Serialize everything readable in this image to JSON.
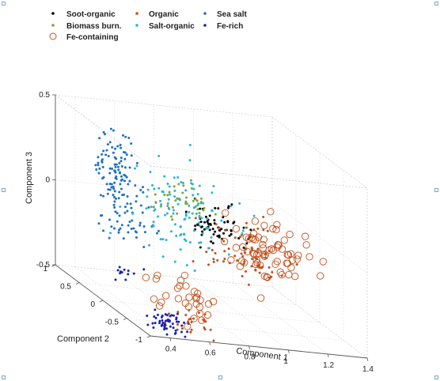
{
  "chart_data": {
    "type": "scatter",
    "title": "",
    "xlabel": "Component 1",
    "ylabel": "Component 2",
    "zlabel": "Component 3",
    "xlim": [
      0.3,
      1.4
    ],
    "ylim": [
      -1,
      1
    ],
    "zlim": [
      -0.5,
      0.5
    ],
    "x_ticks": [
      "0.4",
      "0.6",
      "0.8",
      "1",
      "1.2",
      "1.4"
    ],
    "y_ticks": [
      "-1",
      "-0.5",
      "0",
      "0.5",
      "1"
    ],
    "z_ticks": [
      "-0.5",
      "0",
      "0.5"
    ],
    "grid": true,
    "legend_position": "top-left",
    "series": [
      {
        "name": "Soot-organic",
        "marker": "dot",
        "color": "#000000",
        "clusters": [
          {
            "c": [
              0.85,
              -0.05,
              0.02
            ],
            "s": [
              0.08,
              0.12,
              0.06
            ],
            "n": 70
          }
        ]
      },
      {
        "name": "Organic",
        "marker": "dot",
        "color": "#c0501a",
        "clusters": [
          {
            "c": [
              1.0,
              -0.1,
              -0.12
            ],
            "s": [
              0.1,
              0.25,
              0.08
            ],
            "n": 70
          },
          {
            "c": [
              0.55,
              -0.85,
              -0.42
            ],
            "s": [
              0.06,
              0.08,
              0.04
            ],
            "n": 25
          }
        ]
      },
      {
        "name": "Sea salt",
        "marker": "dot",
        "color": "#1f6fc4",
        "clusters": [
          {
            "c": [
              0.5,
              0.55,
              0.2
            ],
            "s": [
              0.05,
              0.12,
              0.1
            ],
            "n": 90
          },
          {
            "c": [
              0.45,
              0.1,
              0.0
            ],
            "s": [
              0.06,
              0.15,
              0.08
            ],
            "n": 60
          }
        ]
      },
      {
        "name": "Biomass burn.",
        "marker": "dot",
        "color": "#7aa63c",
        "clusters": [
          {
            "c": [
              0.75,
              0.1,
              0.1
            ],
            "s": [
              0.08,
              0.12,
              0.05
            ],
            "n": 40
          }
        ]
      },
      {
        "name": "Salt-organic",
        "marker": "dot",
        "color": "#2cb3d6",
        "clusters": [
          {
            "c": [
              0.75,
              0.2,
              0.05
            ],
            "s": [
              0.12,
              0.25,
              0.12
            ],
            "n": 110
          }
        ]
      },
      {
        "name": "Fe-rich",
        "marker": "dot",
        "color": "#1a22b0",
        "clusters": [
          {
            "c": [
              0.45,
              -0.8,
              -0.45
            ],
            "s": [
              0.05,
              0.07,
              0.03
            ],
            "n": 55
          },
          {
            "c": [
              0.4,
              0.0,
              -0.32
            ],
            "s": [
              0.04,
              0.08,
              0.03
            ],
            "n": 12
          }
        ]
      },
      {
        "name": "Fe-containing",
        "marker": "circle",
        "color": "#c0501a",
        "clusters": [
          {
            "c": [
              1.1,
              -0.2,
              -0.1
            ],
            "s": [
              0.1,
              0.25,
              0.1
            ],
            "n": 70
          },
          {
            "c": [
              0.6,
              -0.6,
              -0.35
            ],
            "s": [
              0.08,
              0.15,
              0.06
            ],
            "n": 30
          }
        ]
      }
    ]
  }
}
